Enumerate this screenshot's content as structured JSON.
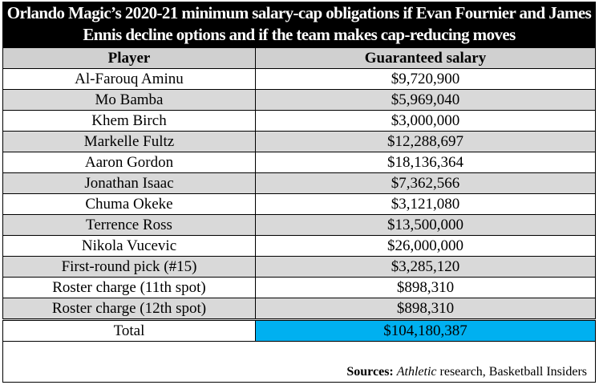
{
  "title": "Orlando Magic’s 2020-21 minimum salary-cap obligations if Evan Fournier and James Ennis decline options and if the team makes cap-reducing moves",
  "headers": [
    "Player",
    "Guaranteed salary"
  ],
  "rows": [
    [
      "Al-Farouq Aminu",
      "$9,720,900"
    ],
    [
      "Mo Bamba",
      "$5,969,040"
    ],
    [
      "Khem Birch",
      "$3,000,000"
    ],
    [
      "Markelle Fultz",
      "$12,288,697"
    ],
    [
      "Aaron Gordon",
      "$18,136,364"
    ],
    [
      "Jonathan Isaac",
      "$7,362,566"
    ],
    [
      "Chuma Okeke",
      "$3,121,080"
    ],
    [
      "Terrence Ross",
      "$13,500,000"
    ],
    [
      "Nikola Vucevic",
      "$26,000,000"
    ],
    [
      "First-round pick (#15)",
      "$3,285,120"
    ],
    [
      "Roster charge (11th spot)",
      "$898,310"
    ],
    [
      "Roster charge (12th spot)",
      "$898,310"
    ]
  ],
  "total": {
    "label": "Total",
    "value": "$104,180,387"
  },
  "sources": {
    "label": "Sources:",
    "italic": "Athletic",
    "rest": " research, Basketball Insiders"
  },
  "colors": {
    "highlight": "#00b0f0",
    "stripe": "#d9d9d9"
  }
}
